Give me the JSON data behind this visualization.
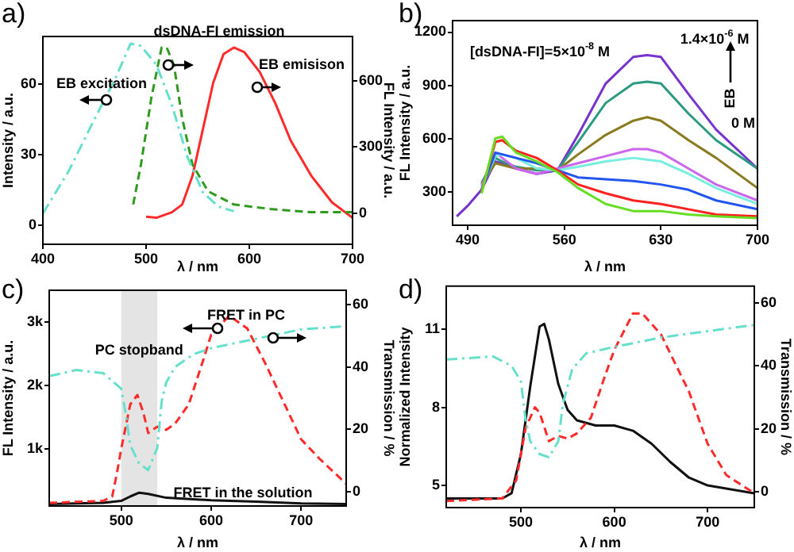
{
  "chart_data": [
    {
      "type": "line",
      "title": "a)",
      "xlabel": "λ / nm",
      "ylabel": "Intensity / a.u.",
      "y2label": "FL Intensity / a.u.",
      "xlim": [
        400,
        700
      ],
      "xticks": [
        400,
        500,
        600,
        700
      ],
      "ylim": [
        -8,
        80
      ],
      "yticks": [
        0,
        30,
        60
      ],
      "y2lim": [
        -140,
        800
      ],
      "y2ticks": [
        0,
        300,
        600
      ],
      "marker": "none",
      "series": [
        {
          "color": "#66e0cc",
          "line_style": "dashdot",
          "x": [
            400,
            425,
            450,
            470,
            485,
            495,
            510,
            525,
            540,
            555,
            570,
            585
          ],
          "values": [
            5,
            23,
            45,
            62,
            77,
            76,
            68,
            51,
            29,
            14,
            8,
            6
          ]
        },
        {
          "color": "#2e9a1e",
          "line_style": "dashed",
          "axis": "y2",
          "x": [
            487.5,
            495,
            505,
            515,
            520,
            527,
            535,
            545,
            560,
            585,
            620,
            660,
            700
          ],
          "values": [
            40,
            220,
            520,
            750,
            750,
            670,
            430,
            220,
            100,
            40,
            20,
            5,
            5
          ]
        },
        {
          "color": "#ff2a2a",
          "line_style": "solid",
          "axis": "y2",
          "x": [
            500,
            510,
            525,
            535,
            545,
            555,
            565,
            575,
            585,
            595,
            610,
            625,
            640,
            660,
            680,
            700
          ],
          "values": [
            -15,
            -20,
            5,
            40,
            170,
            380,
            590,
            720,
            750,
            730,
            640,
            500,
            330,
            170,
            50,
            -20
          ]
        }
      ],
      "annotations": [
        "EB excitation",
        "dsDNA-FI emission",
        "EB emisison"
      ]
    },
    {
      "type": "line",
      "title": "b)",
      "xlabel": "λ / nm",
      "ylabel": "FL Intensity / a.u.",
      "xlim": [
        479,
        700
      ],
      "xticks": [
        490,
        560,
        630,
        700
      ],
      "ylim": [
        110,
        1265
      ],
      "yticks": [
        300,
        600,
        900,
        1200
      ],
      "marker": "none",
      "series": [
        {
          "color": "#66dd22",
          "line_style": "solid",
          "x": [
            500,
            510,
            515,
            525,
            540,
            555,
            570,
            590,
            610,
            630,
            650,
            670,
            700
          ],
          "values": [
            290,
            600,
            610,
            520,
            470,
            410,
            320,
            230,
            190,
            190,
            170,
            160,
            150
          ]
        },
        {
          "color": "#ff2020",
          "line_style": "solid",
          "x": [
            500,
            510,
            515,
            525,
            540,
            555,
            570,
            590,
            610,
            630,
            650,
            670,
            700
          ],
          "values": [
            300,
            580,
            590,
            530,
            490,
            420,
            340,
            290,
            250,
            230,
            200,
            170,
            160
          ]
        },
        {
          "color": "#2255ee",
          "line_style": "solid",
          "x": [
            500,
            510,
            515,
            525,
            540,
            555,
            570,
            590,
            610,
            630,
            650,
            670,
            700
          ],
          "values": [
            310,
            520,
            510,
            490,
            460,
            420,
            380,
            370,
            360,
            340,
            310,
            250,
            200
          ]
        },
        {
          "color": "#77eee0",
          "line_style": "solid",
          "x": [
            500,
            510,
            515,
            525,
            540,
            555,
            570,
            590,
            610,
            630,
            650,
            670,
            700
          ],
          "values": [
            320,
            500,
            510,
            490,
            430,
            420,
            440,
            470,
            490,
            470,
            400,
            320,
            230
          ]
        },
        {
          "color": "#cc66ee",
          "line_style": "solid",
          "x": [
            500,
            510,
            515,
            525,
            540,
            555,
            570,
            590,
            610,
            620,
            630,
            650,
            670,
            700
          ],
          "values": [
            330,
            520,
            490,
            430,
            400,
            430,
            460,
            500,
            540,
            540,
            520,
            430,
            340,
            250
          ]
        },
        {
          "color": "#8a7a20",
          "line_style": "solid",
          "x": [
            500,
            510,
            515,
            525,
            540,
            555,
            570,
            590,
            610,
            620,
            630,
            650,
            670,
            700
          ],
          "values": [
            340,
            460,
            450,
            430,
            430,
            420,
            510,
            620,
            700,
            720,
            700,
            590,
            490,
            320
          ]
        },
        {
          "color": "#2a9a80",
          "line_style": "solid",
          "x": [
            500,
            510,
            515,
            525,
            540,
            555,
            570,
            590,
            610,
            620,
            630,
            650,
            670,
            700
          ],
          "values": [
            350,
            490,
            470,
            440,
            420,
            420,
            580,
            800,
            910,
            920,
            910,
            740,
            590,
            430
          ]
        },
        {
          "color": "#7733cc",
          "line_style": "solid",
          "x": [
            482,
            490,
            500,
            510,
            515,
            525,
            540,
            555,
            570,
            590,
            610,
            620,
            630,
            650,
            670,
            700
          ],
          "values": [
            160,
            220,
            310,
            470,
            460,
            430,
            400,
            420,
            620,
            910,
            1060,
            1070,
            1060,
            850,
            650,
            430
          ]
        }
      ],
      "annotations": [
        "[dsDNA-FI]=5×10$^{-8}$ M",
        "1.4×10$^{-6}$ M",
        "EB",
        "0 M"
      ]
    },
    {
      "type": "line",
      "title": "c)",
      "xlabel": "λ / nm",
      "ylabel": "FL Intensity / a.u.",
      "y2label": "Transmission / %",
      "xlim": [
        420,
        750
      ],
      "xticks": [
        500,
        600,
        700
      ],
      "ylim": [
        100,
        3500
      ],
      "yticks": [
        {
          "value": 1000,
          "label": "1k"
        },
        {
          "value": 2000,
          "label": "2k"
        },
        {
          "value": 3000,
          "label": "3k"
        }
      ],
      "y2lim": [
        -4.5,
        64.5
      ],
      "y2ticks": [
        0,
        20,
        40,
        60
      ],
      "marker": "none",
      "bands": [
        {
          "axis": "x",
          "from": 500,
          "to": 540,
          "label": "PC stopband"
        }
      ],
      "series": [
        {
          "color": "#66e0cc",
          "line_style": "dashdot",
          "axis": "y2",
          "x": [
            420,
            450,
            480,
            500,
            505,
            510,
            520,
            530,
            540,
            545,
            550,
            560,
            580,
            600,
            650,
            700,
            750
          ],
          "values": [
            37,
            39,
            38,
            33,
            25,
            15,
            9,
            7,
            14,
            29,
            35,
            40,
            44,
            46,
            49,
            52,
            53
          ]
        },
        {
          "color": "#ff2a2a",
          "line_style": "dashed",
          "x": [
            420,
            480,
            490,
            495,
            500,
            510,
            518,
            525,
            530,
            540,
            550,
            560,
            575,
            590,
            600,
            620,
            640,
            660,
            680,
            700,
            720,
            750
          ],
          "values": [
            150,
            180,
            250,
            600,
            1000,
            1700,
            1850,
            1550,
            1250,
            1350,
            1300,
            1400,
            1700,
            2350,
            2800,
            3100,
            2900,
            2350,
            1750,
            1150,
            850,
            450
          ]
        },
        {
          "color": "#111111",
          "line_style": "solid",
          "x": [
            420,
            480,
            500,
            510,
            520,
            530,
            550,
            600,
            650,
            700,
            750
          ],
          "values": [
            130,
            150,
            180,
            250,
            310,
            290,
            230,
            190,
            170,
            140,
            130
          ]
        }
      ],
      "annotations": [
        "FRET in PC",
        "FRET in the solution"
      ]
    },
    {
      "type": "line",
      "title": "d)",
      "xlabel": "λ / nm",
      "ylabel": "Normalized Intensity",
      "y2label": "Transmission / %",
      "xlim": [
        420,
        750
      ],
      "xticks": [
        500,
        600,
        700
      ],
      "ylim": [
        4.15,
        12.65
      ],
      "yticks": [
        5,
        8,
        11
      ],
      "y2lim": [
        -5,
        65.3
      ],
      "y2ticks": [
        0,
        20,
        40,
        60
      ],
      "marker": "none",
      "series": [
        {
          "color": "#66e0cc",
          "line_style": "dashdot",
          "axis": "y2",
          "x": [
            420,
            470,
            490,
            500,
            505,
            510,
            520,
            530,
            540,
            545,
            555,
            570,
            600,
            650,
            700,
            750
          ],
          "values": [
            42,
            43,
            40,
            35,
            23,
            16,
            12,
            11,
            16,
            28,
            39,
            44,
            46,
            49,
            51,
            53
          ]
        },
        {
          "color": "#ff2a2a",
          "line_style": "dashed",
          "x": [
            420,
            480,
            495,
            505,
            515,
            520,
            530,
            540,
            550,
            560,
            575,
            590,
            600,
            620,
            630,
            650,
            680,
            700,
            720,
            750
          ],
          "values": [
            4.4,
            4.5,
            5.2,
            7.2,
            8.0,
            7.8,
            6.7,
            6.9,
            6.8,
            7.0,
            7.6,
            9.2,
            10.2,
            11.6,
            11.6,
            10.8,
            8.6,
            6.6,
            5.4,
            4.7
          ]
        },
        {
          "color": "#111111",
          "line_style": "solid",
          "x": [
            420,
            480,
            490,
            500,
            510,
            520,
            525,
            530,
            540,
            550,
            560,
            580,
            600,
            620,
            640,
            660,
            680,
            700,
            750
          ],
          "values": [
            4.5,
            4.5,
            4.7,
            6.2,
            8.8,
            11.1,
            11.2,
            10.6,
            8.9,
            7.9,
            7.5,
            7.3,
            7.3,
            7.1,
            6.6,
            5.9,
            5.3,
            5.0,
            4.7
          ]
        }
      ]
    }
  ]
}
